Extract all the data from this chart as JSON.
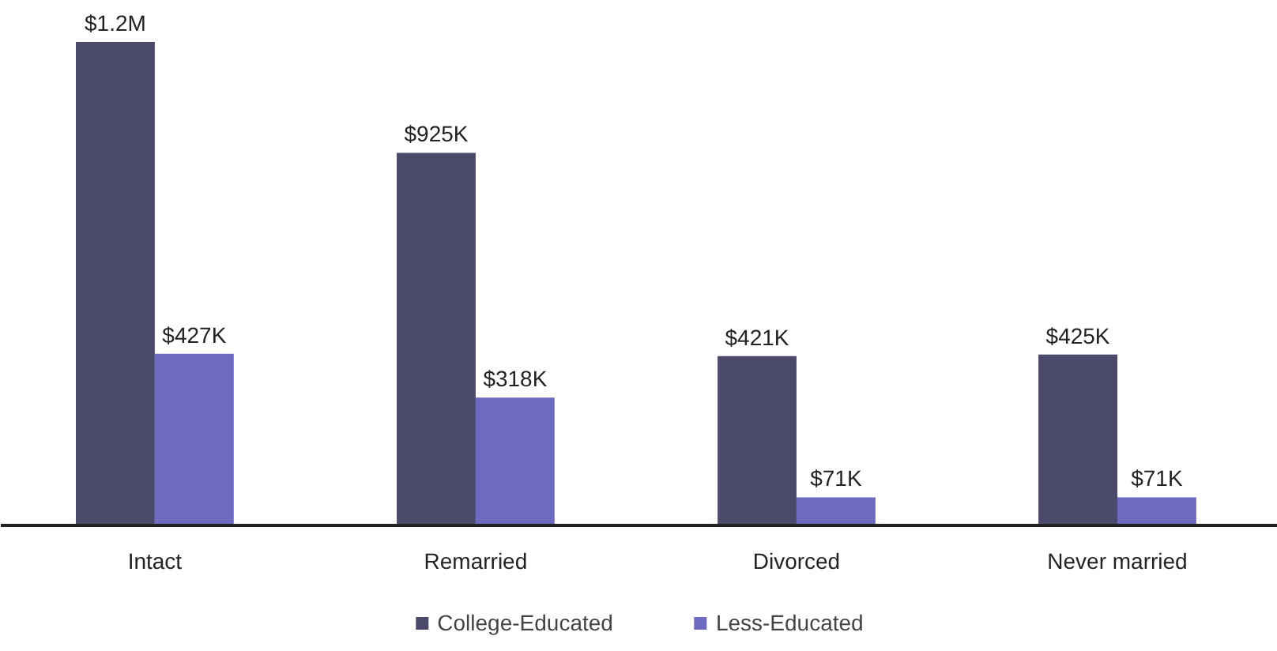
{
  "chart_data": {
    "type": "bar",
    "categories": [
      "Intact",
      "Remarried",
      "Divorced",
      "Never married"
    ],
    "series": [
      {
        "name": "College-Educated",
        "color": "#4b4a6b",
        "values": [
          1200000,
          925000,
          421000,
          425000
        ],
        "value_labels": [
          "$1.2M",
          "$925K",
          "$421K",
          "$425K"
        ]
      },
      {
        "name": "Less-Educated",
        "color": "#6e6ac0",
        "values": [
          427000,
          318000,
          71000,
          71000
        ],
        "value_labels": [
          "$427K",
          "$318K",
          "$71K",
          "$71K"
        ]
      }
    ],
    "legend": "bottom"
  }
}
